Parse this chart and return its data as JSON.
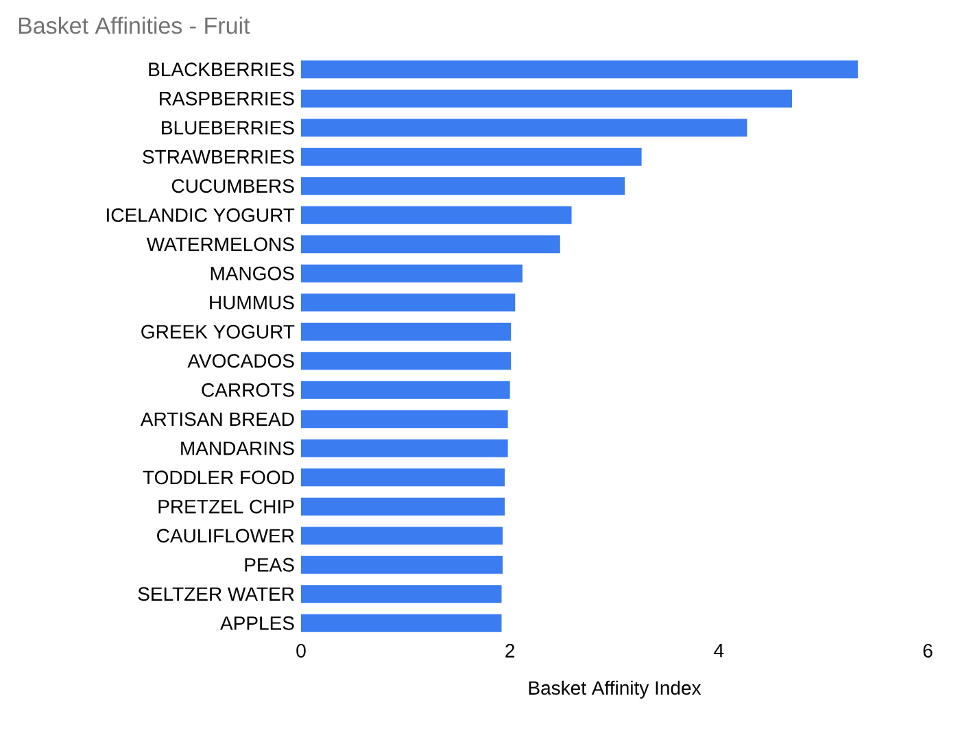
{
  "chart_data": {
    "type": "bar",
    "orientation": "horizontal",
    "title": "Basket Affinities - Fruit",
    "xlabel": "Basket Affinity Index",
    "categories": [
      "BLACKBERRIES",
      "RASPBERRIES",
      "BLUEBERRIES",
      "STRAWBERRIES",
      "CUCUMBERS",
      "ICELANDIC YOGURT",
      "WATERMELONS",
      "MANGOS",
      "HUMMUS",
      "GREEK YOGURT",
      "AVOCADOS",
      "CARROTS",
      "ARTISAN BREAD",
      "MANDARINS",
      "TODDLER FOOD",
      "PRETZEL CHIP",
      "CAULIFLOWER",
      "PEAS",
      "SELTZER WATER",
      "APPLES"
    ],
    "values": [
      5.33,
      4.7,
      4.27,
      3.26,
      3.1,
      2.59,
      2.48,
      2.12,
      2.05,
      2.01,
      2.01,
      2.0,
      1.98,
      1.98,
      1.95,
      1.95,
      1.93,
      1.93,
      1.92,
      1.92
    ],
    "color": "#3b7cf0",
    "xlim": [
      0,
      6
    ],
    "xticks": [
      0,
      2,
      4,
      6
    ]
  }
}
